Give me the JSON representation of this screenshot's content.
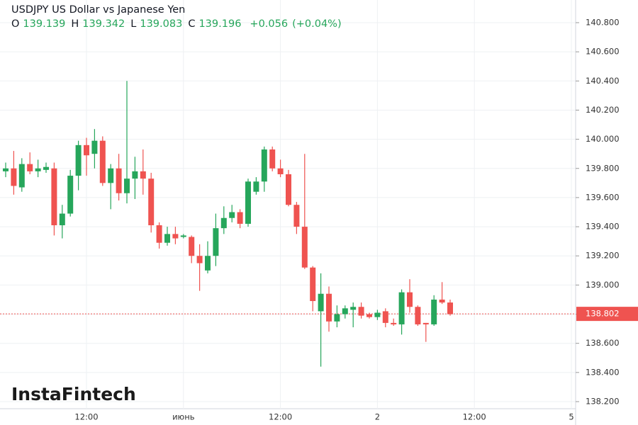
{
  "chart_data": {
    "type": "candlestick",
    "title": "USDJPY US Dollar vs Japanese Yen",
    "ohlc_header": [
      {
        "label": "O",
        "value": 139.139
      },
      {
        "label": "H",
        "value": 139.342
      },
      {
        "label": "L",
        "value": 139.083
      },
      {
        "label": "C",
        "value": 139.196
      }
    ],
    "change": "+0.056",
    "change_pct": "(+0.04%)",
    "watermark": "InstaFintech",
    "categories": [
      null,
      null,
      null,
      null,
      null,
      null,
      null,
      null,
      null,
      null,
      "12:00",
      null,
      null,
      null,
      null,
      null,
      null,
      null,
      null,
      null,
      null,
      null,
      "июнь",
      null,
      null,
      null,
      null,
      null,
      null,
      null,
      null,
      null,
      null,
      null,
      "12:00",
      null,
      null,
      null,
      null,
      null,
      null,
      null,
      null,
      null,
      null,
      null,
      "2",
      null,
      null,
      null,
      null,
      null,
      null,
      null,
      null,
      null,
      null,
      null,
      "12:00",
      null,
      null,
      null,
      null,
      null,
      null,
      null,
      null,
      null,
      null,
      null,
      "5"
    ],
    "open": [
      139.78,
      139.8,
      139.67,
      139.83,
      139.78,
      139.79,
      139.8,
      139.41,
      139.49,
      139.75,
      139.96,
      139.9,
      139.99,
      139.7,
      139.8,
      139.63,
      139.73,
      139.78,
      139.73,
      139.41,
      139.29,
      139.35,
      139.33,
      139.33,
      139.2,
      139.1,
      139.2,
      139.39,
      139.46,
      139.5,
      139.42,
      139.64,
      139.71,
      139.93,
      139.8,
      139.76,
      139.55,
      139.4,
      139.12,
      138.82,
      138.94,
      138.75,
      138.8,
      138.83,
      138.85,
      138.8,
      138.78,
      138.82,
      138.74,
      138.73,
      138.95,
      138.85,
      138.74,
      138.73,
      138.9,
      138.88,
      null,
      null,
      null,
      null,
      null,
      null,
      null,
      null,
      null,
      null,
      null,
      null,
      null,
      null,
      null
    ],
    "high": [
      139.84,
      139.92,
      139.87,
      139.91,
      139.86,
      139.84,
      139.84,
      139.55,
      139.79,
      139.99,
      140.01,
      140.07,
      140.02,
      139.83,
      139.9,
      140.4,
      139.88,
      139.93,
      139.77,
      139.43,
      139.4,
      139.4,
      139.35,
      139.34,
      139.28,
      139.3,
      139.49,
      139.54,
      139.55,
      139.52,
      139.73,
      139.74,
      139.95,
      139.95,
      139.86,
      139.79,
      139.57,
      139.9,
      139.13,
      139.08,
      138.99,
      138.86,
      138.86,
      138.88,
      138.88,
      138.81,
      138.83,
      138.84,
      138.77,
      138.97,
      139.04,
      138.86,
      138.74,
      138.93,
      139.02,
      138.9,
      null,
      null,
      null,
      null,
      null,
      null,
      null,
      null,
      null,
      null,
      null,
      null,
      null,
      null,
      null
    ],
    "low": [
      139.74,
      139.62,
      139.64,
      139.76,
      139.74,
      139.77,
      139.34,
      139.32,
      139.47,
      139.65,
      139.75,
      139.8,
      139.68,
      139.52,
      139.58,
      139.56,
      139.59,
      139.62,
      139.36,
      139.25,
      139.27,
      139.28,
      139.32,
      139.15,
      138.96,
      139.08,
      139.13,
      139.35,
      139.43,
      139.39,
      139.4,
      139.62,
      139.64,
      139.78,
      139.74,
      139.54,
      139.35,
      139.11,
      138.82,
      138.44,
      138.68,
      138.71,
      138.77,
      138.71,
      138.77,
      138.77,
      138.76,
      138.71,
      138.72,
      138.66,
      138.81,
      138.72,
      138.61,
      138.72,
      138.87,
      138.79,
      null,
      null,
      null,
      null,
      null,
      null,
      null,
      null,
      null,
      null,
      null,
      null,
      null,
      null,
      null
    ],
    "close": [
      139.8,
      139.68,
      139.83,
      139.78,
      139.8,
      139.81,
      139.41,
      139.49,
      139.75,
      139.96,
      139.89,
      139.99,
      139.7,
      139.8,
      139.63,
      139.73,
      139.78,
      139.73,
      139.41,
      139.29,
      139.35,
      139.32,
      139.34,
      139.2,
      139.15,
      139.2,
      139.39,
      139.46,
      139.5,
      139.42,
      139.71,
      139.71,
      139.93,
      139.8,
      139.76,
      139.55,
      139.4,
      139.12,
      138.89,
      138.94,
      138.75,
      138.8,
      138.84,
      138.85,
      138.79,
      138.78,
      138.81,
      138.74,
      138.73,
      138.95,
      138.85,
      138.73,
      138.73,
      138.9,
      138.88,
      138.8,
      null,
      null,
      null,
      null,
      null,
      null,
      null,
      null,
      null,
      null,
      null,
      null,
      null,
      null,
      null
    ],
    "up_color": "#26a65b",
    "down_color": "#ef5350",
    "last_price": 138.802,
    "last_price_color": "#ef5350",
    "ylim": [
      138.2,
      140.8
    ],
    "yticks": [
      {
        "value": 138.2,
        "label": "138.200"
      },
      {
        "value": 138.4,
        "label": "138.400"
      },
      {
        "value": 138.6,
        "label": "138.600"
      },
      {
        "value": 138.8,
        "label": "138.800"
      },
      {
        "value": 139.0,
        "label": "139.000"
      },
      {
        "value": 139.2,
        "label": "139.200"
      },
      {
        "value": 139.4,
        "label": "139.400"
      },
      {
        "value": 139.6,
        "label": "139.600"
      },
      {
        "value": 139.8,
        "label": "139.800"
      },
      {
        "value": 140.0,
        "label": "140.000"
      },
      {
        "value": 140.2,
        "label": "140.200"
      },
      {
        "value": 140.4,
        "label": "140.400"
      },
      {
        "value": 140.6,
        "label": "140.600"
      },
      {
        "value": 140.8,
        "label": "140.800"
      }
    ],
    "grid": true
  }
}
